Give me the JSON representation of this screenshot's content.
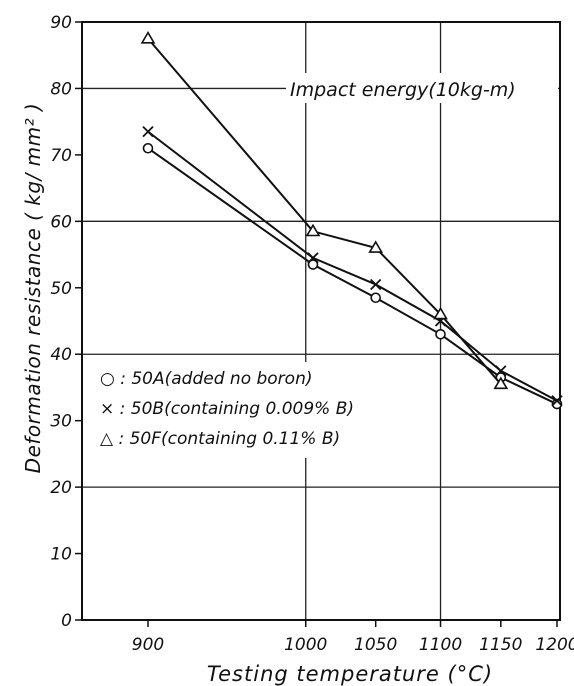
{
  "chart_data": {
    "type": "line",
    "title": "Impact energy(10kg-m)",
    "xlabel": "Testing temperature (°C)",
    "ylabel": "Deformation resistance ( kg/ mm² )",
    "x_ticks": [
      "900",
      "1000",
      "1050",
      "1100",
      "1150",
      "1200"
    ],
    "y_ticks": [
      "0",
      "10",
      "20",
      "30",
      "40",
      "50",
      "60",
      "70",
      "80",
      "90"
    ],
    "ylim": [
      0,
      90
    ],
    "x_scale": "reciprocal",
    "grid": true,
    "legend_position": "left-middle",
    "series": [
      {
        "name": "50A(added no boron)",
        "legend_label": "○ : 50A(added no boron)",
        "marker": "circle",
        "points": [
          [
            900,
            71
          ],
          [
            1005,
            53.5
          ],
          [
            1050,
            48.5
          ],
          [
            1100,
            43
          ],
          [
            1150,
            36.5
          ],
          [
            1200,
            32.5
          ]
        ]
      },
      {
        "name": "50B(containing 0.009% B)",
        "legend_label": "× : 50B(containing 0.009% B)",
        "marker": "x",
        "points": [
          [
            900,
            73.5
          ],
          [
            1005,
            54.5
          ],
          [
            1050,
            50.5
          ],
          [
            1100,
            45
          ],
          [
            1150,
            37.5
          ],
          [
            1200,
            33
          ]
        ]
      },
      {
        "name": "50F(containing 0.11% B)",
        "legend_label": "△ : 50F(containing 0.11% B)",
        "marker": "triangle",
        "points": [
          [
            900,
            87.5
          ],
          [
            1005,
            58.5
          ],
          [
            1050,
            56
          ],
          [
            1100,
            46
          ],
          [
            1150,
            35.5
          ]
        ]
      }
    ]
  }
}
